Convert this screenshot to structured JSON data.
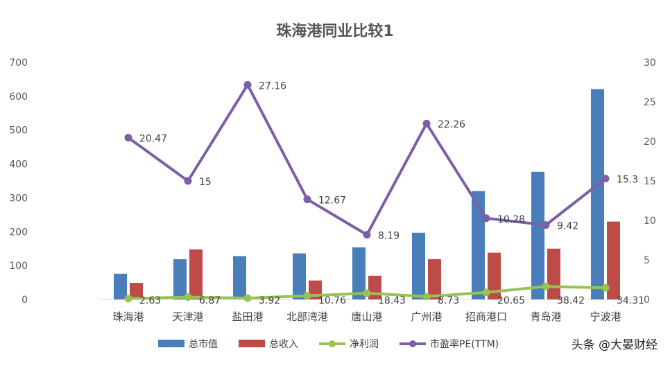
{
  "watermark": "头条 @大晏财经",
  "chart_data": {
    "type": "bar",
    "title": "珠海港同业比较1",
    "categories": [
      "珠海港",
      "天津港",
      "盐田港",
      "北部湾港",
      "唐山港",
      "广州港",
      "招商港口",
      "青岛港",
      "宁波港"
    ],
    "ylim": [
      0,
      700
    ],
    "y_ticks": [
      0,
      100,
      200,
      300,
      400,
      500,
      600,
      700
    ],
    "y2lim": [
      0,
      30
    ],
    "y2_ticks": [
      0,
      5,
      10,
      15,
      20,
      25,
      30
    ],
    "grid": false,
    "legend_position": "bottom",
    "series": [
      {
        "name": "总市值",
        "type": "bar",
        "axis": "left",
        "color": "#4a7ebb",
        "values": [
          76,
          119,
          128,
          136,
          154,
          197,
          320,
          377,
          621
        ]
      },
      {
        "name": "总收入",
        "type": "bar",
        "axis": "left",
        "color": "#be4b48",
        "values": [
          49,
          148,
          0,
          56,
          70,
          119,
          138,
          150,
          230
        ]
      },
      {
        "name": "净利润",
        "type": "line",
        "axis": "left",
        "color": "#98c254",
        "values": [
          2.63,
          6.87,
          3.92,
          10.76,
          18.43,
          8.73,
          20.65,
          38.42,
          34.31
        ],
        "labels": [
          "2.63",
          "6.87",
          "3.92",
          "10.76",
          "18.43",
          "8.73",
          "20.65",
          "38.42",
          "34.31"
        ]
      },
      {
        "name": "市盈率PE(TTM)",
        "type": "line",
        "axis": "right",
        "color": "#7d5ea8",
        "values": [
          20.47,
          15,
          27.16,
          12.67,
          8.19,
          22.26,
          10.28,
          9.42,
          15.3
        ],
        "labels": [
          "20.47",
          "15",
          "27.16",
          "12.67",
          "8.19",
          "22.26",
          "10.28",
          "9.42",
          "15.3"
        ]
      }
    ]
  }
}
